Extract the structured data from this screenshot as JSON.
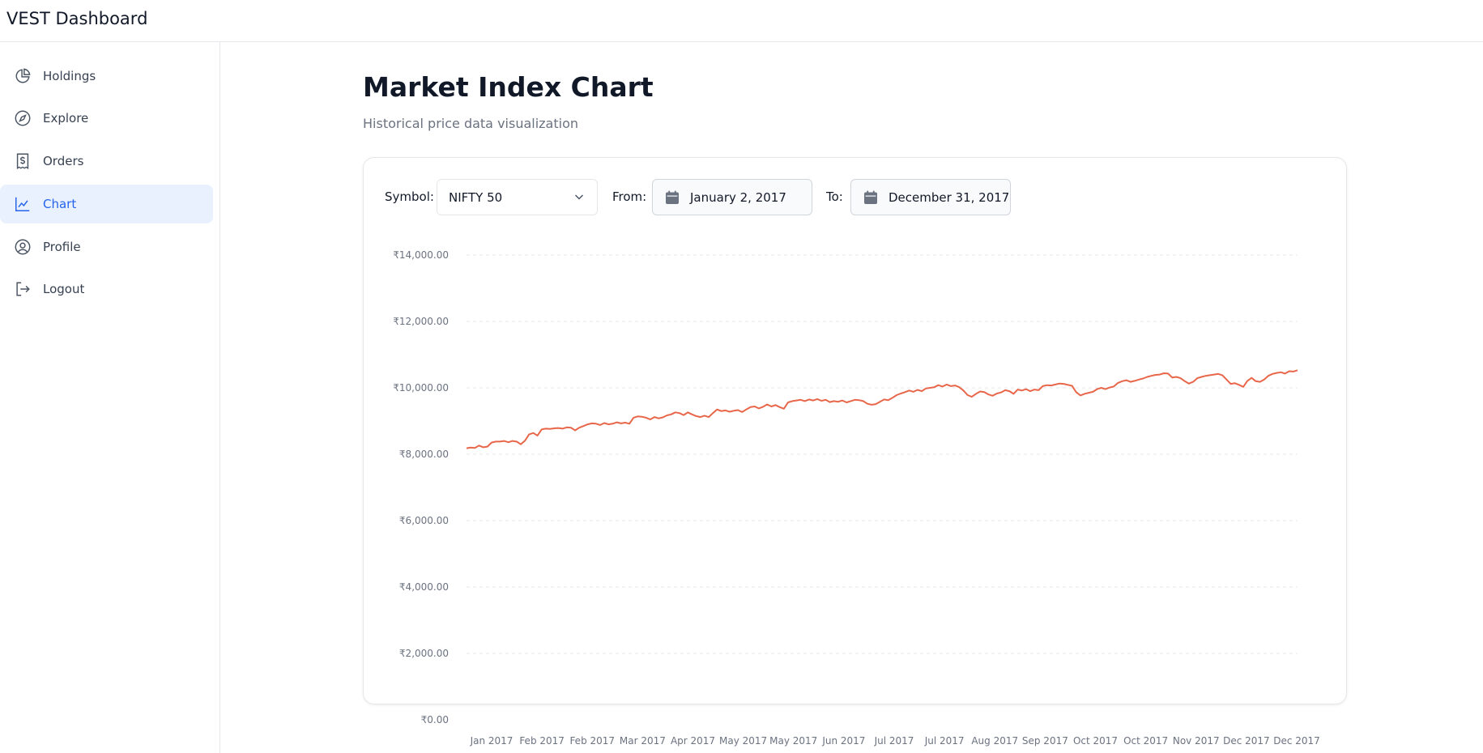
{
  "app": {
    "title": "VEST Dashboard"
  },
  "sidebar": {
    "items": [
      {
        "label": "Holdings",
        "icon": "pie-chart-icon"
      },
      {
        "label": "Explore",
        "icon": "compass-icon"
      },
      {
        "label": "Orders",
        "icon": "receipt-dollar-icon"
      },
      {
        "label": "Chart",
        "icon": "line-chart-icon",
        "active": true
      },
      {
        "label": "Profile",
        "icon": "user-circle-icon"
      },
      {
        "label": "Logout",
        "icon": "logout-icon"
      }
    ]
  },
  "main": {
    "title": "Market Index Chart",
    "subtitle": "Historical price data visualization"
  },
  "controls": {
    "symbol_label": "Symbol:",
    "symbol_value": "NIFTY 50",
    "from_label": "From:",
    "from_value": "January 2, 2017",
    "to_label": "To:",
    "to_value": "December 31, 2017"
  },
  "colors": {
    "accent": "#2563eb",
    "active_bg": "#e8f1fd",
    "line": "#e8674a",
    "grid": "#e5e7eb"
  },
  "chart_data": {
    "type": "line",
    "title": "",
    "xlabel": "",
    "ylabel": "",
    "ylim": [
      0,
      14000
    ],
    "y_ticks": [
      "₹0.00",
      "₹2,000.00",
      "₹4,000.00",
      "₹6,000.00",
      "₹8,000.00",
      "₹10,000.00",
      "₹12,000.00",
      "₹14,000.00"
    ],
    "y_tick_values": [
      0,
      2000,
      4000,
      6000,
      8000,
      10000,
      12000,
      14000
    ],
    "x_ticks": [
      "Jan 2017",
      "Feb 2017",
      "Feb 2017",
      "Mar 2017",
      "Apr 2017",
      "May 2017",
      "May 2017",
      "Jun 2017",
      "Jul 2017",
      "Jul 2017",
      "Aug 2017",
      "Sep 2017",
      "Oct 2017",
      "Oct 2017",
      "Nov 2017",
      "Dec 2017",
      "Dec 2017"
    ],
    "grid": true,
    "series": [
      {
        "values": [
          8180,
          8200,
          8190,
          8260,
          8210,
          8230,
          8350,
          8380,
          8380,
          8400,
          8360,
          8400,
          8380,
          8300,
          8410,
          8600,
          8640,
          8560,
          8750,
          8770,
          8760,
          8780,
          8790,
          8770,
          8810,
          8800,
          8720,
          8800,
          8850,
          8900,
          8930,
          8920,
          8880,
          8940,
          8900,
          8920,
          8960,
          8930,
          8950,
          8920,
          9100,
          9140,
          9130,
          9100,
          9050,
          9120,
          9080,
          9110,
          9170,
          9200,
          9260,
          9240,
          9180,
          9260,
          9200,
          9150,
          9120,
          9160,
          9120,
          9240,
          9350,
          9300,
          9320,
          9280,
          9310,
          9330,
          9270,
          9350,
          9420,
          9440,
          9380,
          9430,
          9500,
          9440,
          9480,
          9420,
          9370,
          9560,
          9600,
          9620,
          9640,
          9600,
          9650,
          9620,
          9660,
          9610,
          9640,
          9570,
          9600,
          9580,
          9620,
          9560,
          9600,
          9640,
          9630,
          9600,
          9520,
          9490,
          9510,
          9580,
          9650,
          9630,
          9700,
          9780,
          9830,
          9870,
          9920,
          9880,
          9940,
          9900,
          9980,
          10000,
          10020,
          10080,
          10040,
          10100,
          10050,
          10070,
          10020,
          9920,
          9780,
          9730,
          9820,
          9890,
          9870,
          9800,
          9760,
          9830,
          9860,
          9930,
          9900,
          9820,
          9950,
          9920,
          9960,
          9900,
          9950,
          9930,
          10050,
          10080,
          10070,
          10100,
          10130,
          10120,
          10090,
          10060,
          9870,
          9770,
          9820,
          9850,
          9880,
          9960,
          10000,
          9960,
          10010,
          10040,
          10150,
          10200,
          10230,
          10180,
          10210,
          10250,
          10280,
          10330,
          10360,
          10390,
          10400,
          10440,
          10430,
          10310,
          10330,
          10290,
          10200,
          10130,
          10180,
          10290,
          10330,
          10360,
          10380,
          10400,
          10420,
          10380,
          10250,
          10120,
          10140,
          10090,
          10030,
          10210,
          10300,
          10200,
          10180,
          10250,
          10360,
          10420,
          10450,
          10470,
          10430,
          10500,
          10490,
          10530
        ]
      }
    ]
  }
}
